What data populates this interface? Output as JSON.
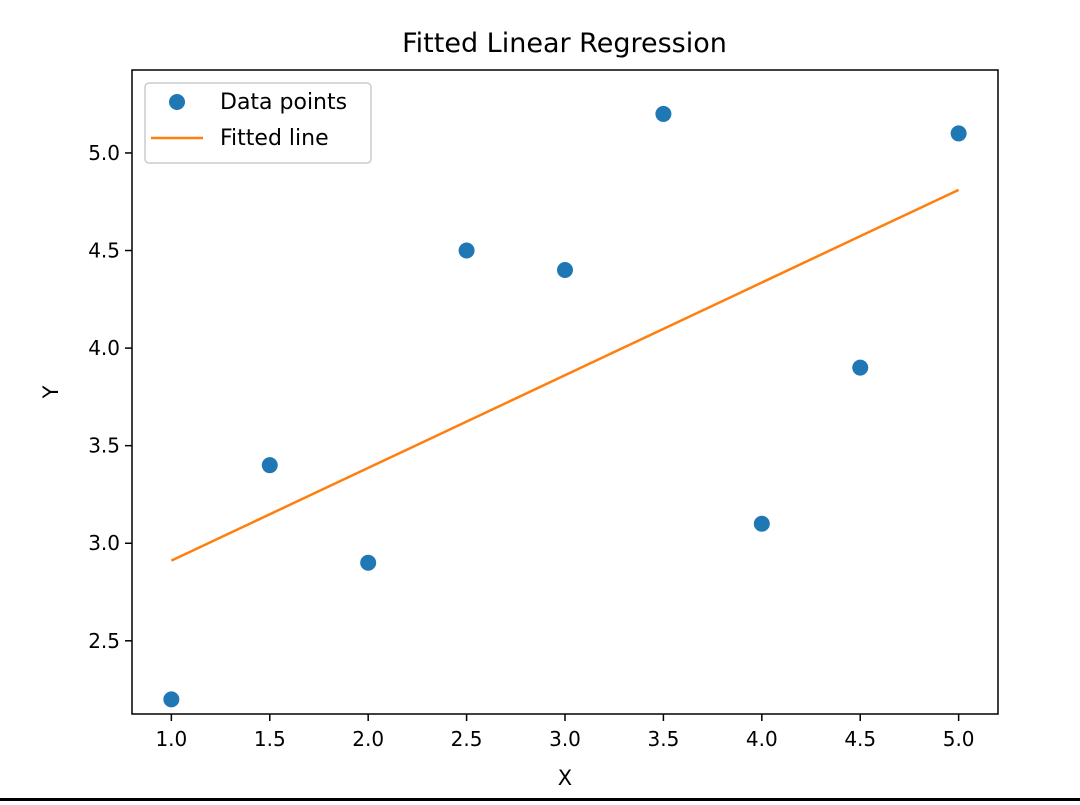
{
  "chart_data": {
    "type": "scatter",
    "title": "Fitted Linear Regression",
    "xlabel": "X",
    "ylabel": "Y",
    "xlim": [
      0.8,
      5.2
    ],
    "ylim": [
      2.125,
      5.425
    ],
    "xticks": [
      1.0,
      1.5,
      2.0,
      2.5,
      3.0,
      3.5,
      4.0,
      4.5,
      5.0
    ],
    "xtick_labels": [
      "1.0",
      "1.5",
      "2.0",
      "2.5",
      "3.0",
      "3.5",
      "4.0",
      "4.5",
      "5.0"
    ],
    "yticks": [
      2.5,
      3.0,
      3.5,
      4.0,
      4.5,
      5.0
    ],
    "ytick_labels": [
      "2.5",
      "3.0",
      "3.5",
      "4.0",
      "4.5",
      "5.0"
    ],
    "grid": false,
    "legend_position": "upper-left",
    "series": [
      {
        "name": "Data points",
        "kind": "scatter",
        "color": "#1f77b4",
        "x": [
          1.0,
          1.5,
          2.0,
          2.5,
          3.0,
          3.5,
          4.0,
          4.5,
          5.0
        ],
        "y": [
          2.2,
          3.4,
          2.9,
          4.5,
          4.4,
          5.2,
          3.1,
          3.9,
          5.1
        ]
      },
      {
        "name": "Fitted line",
        "kind": "line",
        "color": "#ff7f0e",
        "x": [
          1.0,
          5.0
        ],
        "y": [
          2.911,
          4.811
        ]
      }
    ]
  }
}
